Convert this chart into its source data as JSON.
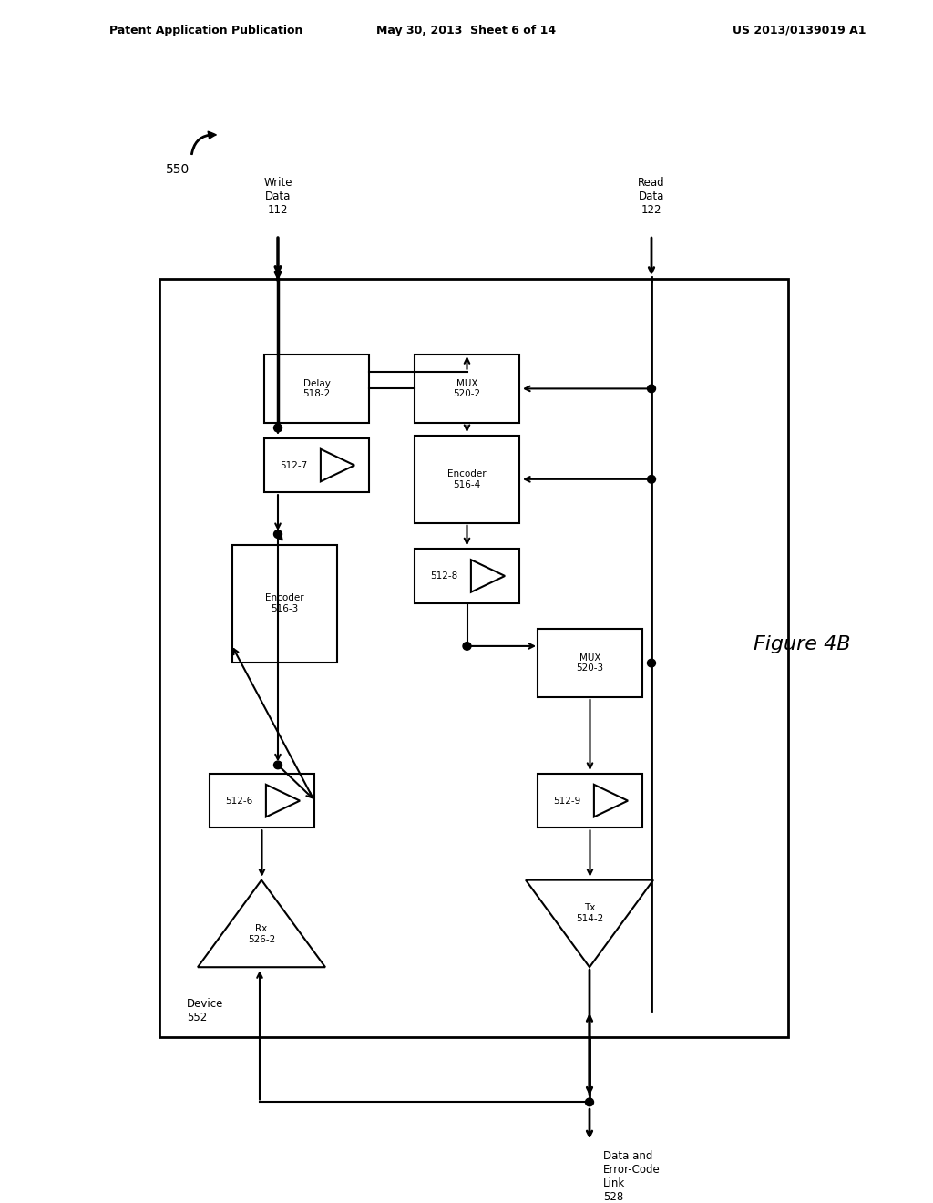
{
  "header_left": "Patent Application Publication",
  "header_mid": "May 30, 2013  Sheet 6 of 14",
  "header_right": "US 2013/0139019 A1",
  "figure_label": "Figure 4B",
  "diagram_label": "550",
  "device_label": "Device\n552",
  "write_data_label": "Write\nData\n112",
  "read_data_label": "Read\nData\n122",
  "link_label": "Data and\nError-Code\nLink\n528",
  "bg_color": "#ffffff",
  "box_color": "#000000",
  "line_color": "#000000"
}
